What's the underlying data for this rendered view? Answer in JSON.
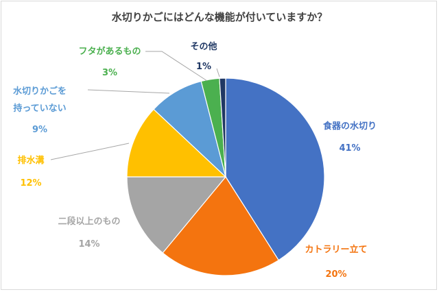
{
  "chart_data": {
    "type": "pie",
    "title": "水切りかごにはどんな機能が付いていますか？",
    "slices": [
      {
        "label_lines": [
          "食器の水切り"
        ],
        "pct_label": "41%",
        "value": 41,
        "color": "#4472c4"
      },
      {
        "label_lines": [
          "カトラリー立て"
        ],
        "pct_label": "20%",
        "value": 20,
        "color": "#f4740f"
      },
      {
        "label_lines": [
          "二段以上のもの"
        ],
        "pct_label": "14%",
        "value": 14,
        "color": "#a5a5a5"
      },
      {
        "label_lines": [
          "排水溝"
        ],
        "pct_label": "12%",
        "value": 12,
        "color": "#ffc000"
      },
      {
        "label_lines": [
          "水切りかごを",
          "持っていない"
        ],
        "pct_label": "9%",
        "value": 9,
        "color": "#5b9bd5"
      },
      {
        "label_lines": [
          "フタがあるもの"
        ],
        "pct_label": "3%",
        "value": 3,
        "color": "#4bb04f"
      },
      {
        "label_lines": [
          "その他"
        ],
        "pct_label": "1%",
        "value": 1,
        "color": "#203864"
      }
    ]
  }
}
